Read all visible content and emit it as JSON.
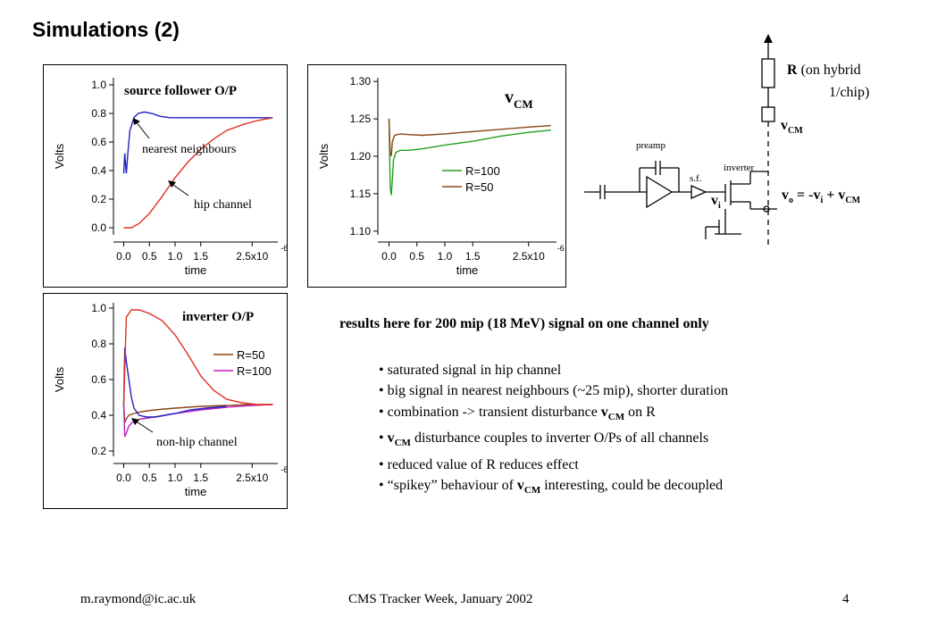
{
  "slide": {
    "title": "Simulations (2)",
    "results_heading": "results here for 200 mip (18 MeV) signal on one channel only",
    "bullets": [
      {
        "pre": "saturated signal in hip channel",
        "v": "",
        "post": ""
      },
      {
        "pre": "big signal in nearest neighbours (~25 mip), shorter duration",
        "v": "",
        "post": ""
      },
      {
        "pre": "combination -> transient disturbance ",
        "v": "v",
        "sub": "CM",
        "post": " on R"
      },
      {
        "pre": "",
        "v": "v",
        "sub": "CM",
        "post": " disturbance couples to inverter O/Ps of all channels"
      },
      {
        "pre": "reduced value of R reduces effect",
        "v": "",
        "post": ""
      },
      {
        "pre": "“spikey” behaviour of ",
        "v": "v",
        "sub": "CM",
        "post": " interesting, could be decoupled"
      }
    ],
    "footer": {
      "email": "m.raymond@ic.ac.uk",
      "event": "CMS Tracker Week, January 2002",
      "page": "4"
    }
  },
  "circuit": {
    "r_label": "R",
    "r_note_1": "(on hybrid",
    "r_note_2": "1/chip)",
    "vcm_v": "v",
    "vcm_sub": "CM",
    "preamp": "preamp",
    "sf": "s.f.",
    "inverter": "inverter",
    "vi_v": "v",
    "vi_sub": "i",
    "eq_vo": "v",
    "eq_o": "o",
    "eq_mid": " = -v",
    "eq_i": "i",
    "eq_plus": " + v",
    "eq_cm": "CM"
  },
  "chart_data": [
    {
      "type": "line",
      "title": "source follower O/P",
      "xlabel": "time",
      "ylabel": "Volts",
      "xlim": [
        -0.2,
        3.0
      ],
      "ylim": [
        -0.05,
        1.05
      ],
      "x_ticks": [
        "0.0",
        "0.5",
        "1.0",
        "1.5",
        "2.5x10"
      ],
      "x_exp": "-6",
      "y_ticks": [
        "0.0",
        "0.2",
        "0.4",
        "0.6",
        "0.8",
        "1.0"
      ],
      "series": [
        {
          "color": "#2020c0",
          "x": [
            0,
            0.02,
            0.04,
            0.05,
            0.08,
            0.12,
            0.2,
            0.28,
            0.4,
            0.55,
            0.7,
            0.9,
            1.2,
            1.6,
            2.0,
            2.5,
            2.9
          ],
          "y": [
            0.38,
            0.52,
            0.42,
            0.38,
            0.52,
            0.68,
            0.77,
            0.8,
            0.81,
            0.8,
            0.78,
            0.77,
            0.77,
            0.77,
            0.77,
            0.77,
            0.77
          ]
        },
        {
          "color": "#e03020",
          "x": [
            0,
            0.15,
            0.3,
            0.5,
            0.75,
            1.0,
            1.25,
            1.5,
            1.75,
            2.0,
            2.3,
            2.6,
            2.9
          ],
          "y": [
            0.0,
            0.0,
            0.03,
            0.1,
            0.22,
            0.35,
            0.46,
            0.55,
            0.62,
            0.68,
            0.72,
            0.75,
            0.77
          ]
        }
      ],
      "annotations": [
        "nearest neighbours",
        "hip channel"
      ]
    },
    {
      "type": "line",
      "title": "v",
      "title_sub": "CM",
      "xlabel": "time",
      "ylabel": "Volts",
      "xlim": [
        -0.2,
        3.0
      ],
      "ylim": [
        1.095,
        1.305
      ],
      "x_ticks": [
        "0.0",
        "0.5",
        "1.0",
        "1.5",
        "2.5x10"
      ],
      "x_exp": "-6",
      "y_ticks": [
        "1.10",
        "1.15",
        "1.20",
        "1.25",
        "1.30"
      ],
      "series": [
        {
          "name": "R=100",
          "color": "#20a020",
          "x": [
            0,
            0.02,
            0.04,
            0.06,
            0.08,
            0.12,
            0.2,
            0.35,
            0.6,
            1.0,
            1.5,
            2.0,
            2.5,
            2.9
          ],
          "y": [
            1.25,
            1.16,
            1.148,
            1.17,
            1.195,
            1.205,
            1.208,
            1.208,
            1.21,
            1.215,
            1.22,
            1.227,
            1.232,
            1.235
          ]
        },
        {
          "name": "R=50",
          "color": "#8b4513",
          "x": [
            0,
            0.02,
            0.04,
            0.06,
            0.1,
            0.2,
            0.35,
            0.6,
            1.0,
            1.5,
            2.0,
            2.5,
            2.9
          ],
          "y": [
            1.25,
            1.205,
            1.2,
            1.22,
            1.228,
            1.23,
            1.229,
            1.228,
            1.23,
            1.233,
            1.236,
            1.239,
            1.241
          ]
        }
      ]
    },
    {
      "type": "line",
      "title": "inverter O/P",
      "xlabel": "time",
      "ylabel": "Volts",
      "xlim": [
        -0.2,
        3.0
      ],
      "ylim": [
        0.17,
        1.03
      ],
      "x_ticks": [
        "0.0",
        "0.5",
        "1.0",
        "1.5",
        "2.5x10"
      ],
      "x_exp": "-6",
      "y_ticks": [
        "0.2",
        "0.4",
        "0.6",
        "0.8",
        "1.0"
      ],
      "series": [
        {
          "name": "R=50",
          "color": "#8b4513",
          "x": [
            0,
            0.02,
            0.05,
            0.1,
            0.2,
            0.35,
            0.6,
            1.0,
            1.5,
            2.0,
            2.5,
            2.9
          ],
          "y": [
            0.46,
            0.36,
            0.38,
            0.4,
            0.41,
            0.42,
            0.43,
            0.44,
            0.45,
            0.455,
            0.46,
            0.46
          ]
        },
        {
          "name": "R=100",
          "color": "#c020c0",
          "x": [
            0,
            0.02,
            0.05,
            0.1,
            0.2,
            0.35,
            0.6,
            1.0,
            1.5,
            2.0,
            2.5,
            2.9
          ],
          "y": [
            0.46,
            0.28,
            0.3,
            0.34,
            0.37,
            0.38,
            0.39,
            0.41,
            0.43,
            0.445,
            0.455,
            0.46
          ]
        },
        {
          "color": "#2020c0",
          "x": [
            0,
            0.02,
            0.05,
            0.1,
            0.15,
            0.2,
            0.3,
            0.45,
            0.6,
            0.8,
            1.0,
            1.3,
            1.6,
            2.0
          ],
          "y": [
            0.46,
            0.78,
            0.7,
            0.6,
            0.5,
            0.44,
            0.4,
            0.39,
            0.39,
            0.4,
            0.41,
            0.43,
            0.44,
            0.45
          ]
        },
        {
          "color": "#e03020",
          "x": [
            0,
            0.05,
            0.15,
            0.3,
            0.5,
            0.75,
            1.0,
            1.25,
            1.5,
            1.75,
            2.0,
            2.3,
            2.6,
            2.9
          ],
          "y": [
            0.46,
            0.95,
            0.99,
            0.99,
            0.97,
            0.93,
            0.85,
            0.74,
            0.62,
            0.54,
            0.49,
            0.47,
            0.46,
            0.46
          ]
        }
      ],
      "annotations": [
        "non-hip channel"
      ]
    }
  ]
}
